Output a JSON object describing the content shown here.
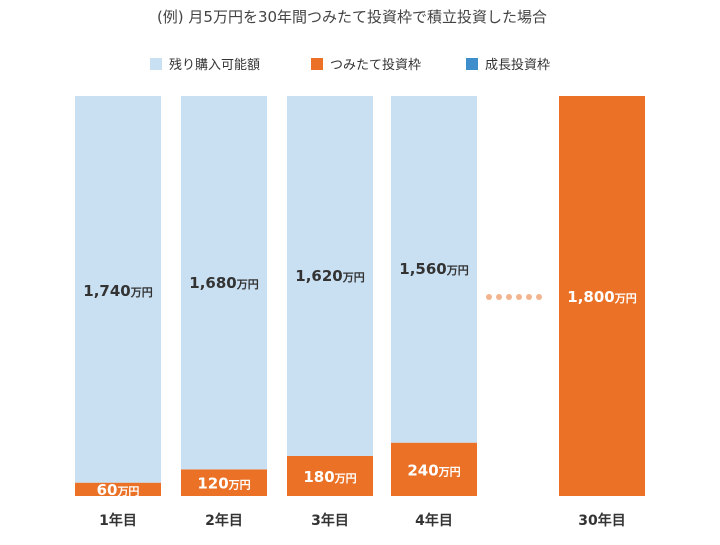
{
  "chart_data": {
    "type": "bar",
    "stacked": true,
    "title": "(例) 月5万円を30年間つみたて投資枠で積立投資した場合",
    "categories": [
      "1年目",
      "2年目",
      "3年目",
      "4年目",
      "30年目"
    ],
    "unit": "万円",
    "ylim": [
      0,
      1800
    ],
    "series": [
      {
        "name": "残り購入可能額",
        "color": "#c9e0f3",
        "values": [
          1740,
          1680,
          1620,
          1560,
          0
        ],
        "labels": [
          "1,740",
          "1,680",
          "1,620",
          "1,560",
          ""
        ],
        "label_color": "#333333"
      },
      {
        "name": "つみたて投資枠",
        "color": "#ea7125",
        "values": [
          60,
          120,
          180,
          240,
          1800
        ],
        "labels": [
          "60",
          "120",
          "180",
          "240",
          "1,800"
        ],
        "label_color": "#ffffff"
      },
      {
        "name": "成長投資枠",
        "color": "#3d8ecb",
        "values": [
          0,
          0,
          0,
          0,
          0
        ],
        "labels": [
          "",
          "",
          "",
          "",
          ""
        ],
        "label_color": "#ffffff"
      }
    ],
    "gap_indicator": "dots",
    "grid": false,
    "legend_position": "top-center"
  }
}
